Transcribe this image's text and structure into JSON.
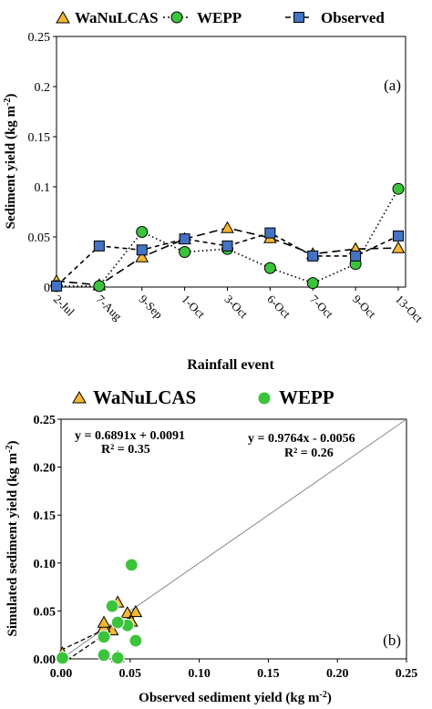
{
  "chart_data": [
    {
      "type": "line",
      "panel_label": "(a)",
      "title": "",
      "xlabel": "Rainfall event",
      "ylabel": "Sediment yield (kg m",
      "ylabel_sup": "-2",
      "ylabel_end": ")",
      "ylim": [
        0,
        0.25
      ],
      "yticks": [
        "0",
        "0.05",
        "0.1",
        "0.15",
        "0.2",
        "0.25"
      ],
      "ytick_values": [
        0,
        0.05,
        0.1,
        0.15,
        0.2,
        0.25
      ],
      "categories": [
        "2-Jul",
        "7-Aug",
        "9-Sep",
        "1-Oct",
        "3-Oct",
        "6-Oct",
        "7-Oct",
        "9-Oct",
        "13-Oct"
      ],
      "grid": false,
      "legend_position": "top",
      "series": [
        {
          "name": "WaNuLCAS",
          "marker": "triangle",
          "color": "#f5b731",
          "dash": "long-dash",
          "values": [
            0.006,
            0.002,
            0.03,
            0.048,
            0.059,
            0.049,
            0.033,
            0.038,
            0.039
          ]
        },
        {
          "name": "WEPP",
          "marker": "circle",
          "color": "#3bc43b",
          "dash": "dotted",
          "values": [
            0.001,
            0.001,
            0.055,
            0.035,
            0.038,
            0.019,
            0.004,
            0.023,
            0.098
          ]
        },
        {
          "name": "Observed",
          "marker": "square",
          "color": "#4472c4",
          "dash": "dashed",
          "values": [
            0.001,
            0.041,
            0.037,
            0.048,
            0.041,
            0.054,
            0.031,
            0.031,
            0.051
          ]
        }
      ]
    },
    {
      "type": "scatter",
      "panel_label": "(b)",
      "title": "",
      "xlabel": "Observed sediment yield (kg m",
      "xlabel_sup": "-2",
      "xlabel_end": ")",
      "ylabel": "Simulated sediment yield (kg m",
      "ylabel_sup": "-2",
      "ylabel_end": ")",
      "xlim": [
        0,
        0.25
      ],
      "ylim": [
        0,
        0.25
      ],
      "xticks": [
        "0.00",
        "0.05",
        "0.10",
        "0.15",
        "0.20",
        "0.25"
      ],
      "yticks": [
        "0.00",
        "0.05",
        "0.10",
        "0.15",
        "0.20",
        "0.25"
      ],
      "tick_values": [
        0,
        0.05,
        0.1,
        0.15,
        0.2,
        0.25
      ],
      "grid": false,
      "legend_position": "top",
      "one_to_one_line": true,
      "series": [
        {
          "name": "WaNuLCAS",
          "marker": "triangle",
          "color": "#f5b731",
          "x": [
            0.001,
            0.041,
            0.037,
            0.048,
            0.041,
            0.054,
            0.031,
            0.031,
            0.051
          ],
          "y": [
            0.006,
            0.002,
            0.03,
            0.048,
            0.059,
            0.049,
            0.033,
            0.038,
            0.039
          ],
          "regression": {
            "equation": "y = 0.6891x + 0.0091",
            "r2": "R² = 0.35",
            "slope": 0.6891,
            "intercept": 0.0091
          }
        },
        {
          "name": "WEPP",
          "marker": "circle",
          "color": "#3bc43b",
          "x": [
            0.001,
            0.041,
            0.037,
            0.048,
            0.041,
            0.054,
            0.031,
            0.031,
            0.051
          ],
          "y": [
            0.001,
            0.001,
            0.055,
            0.035,
            0.038,
            0.019,
            0.004,
            0.023,
            0.098
          ],
          "regression": {
            "equation": "y = 0.9764x - 0.0056",
            "r2": "R² = 0.26",
            "slope": 0.9764,
            "intercept": -0.0056
          }
        }
      ]
    }
  ]
}
